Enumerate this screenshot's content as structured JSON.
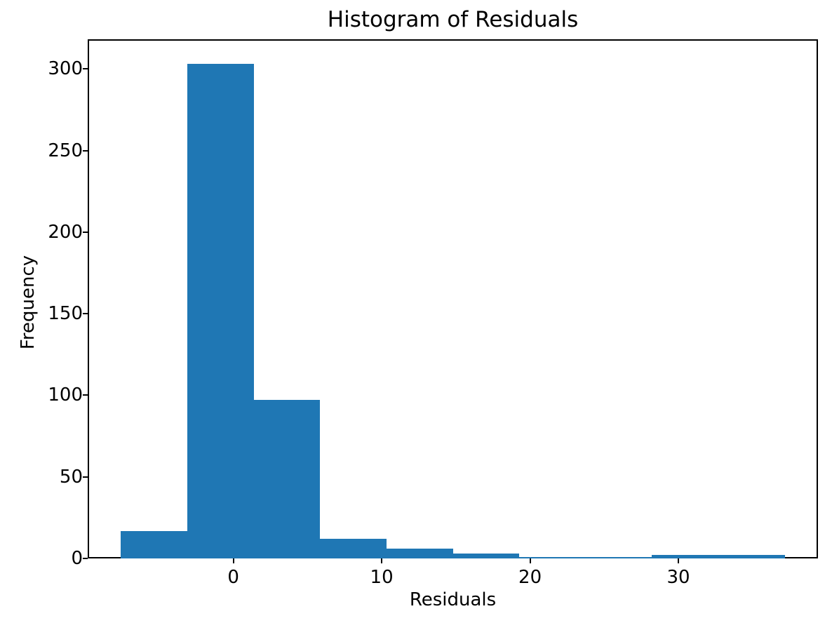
{
  "chart_data": {
    "type": "bar",
    "subtype": "histogram",
    "title": "Histogram of Residuals",
    "xlabel": "Residuals",
    "ylabel": "Frequency",
    "bar_color": "#1f77b4",
    "text_color": "#000000",
    "background_color": "#ffffff",
    "bin_edges": [
      -7.58,
      -3.11,
      1.37,
      5.85,
      10.32,
      14.8,
      19.27,
      23.75,
      28.22,
      32.7,
      37.17
    ],
    "counts": [
      17,
      303,
      97,
      12,
      6,
      3,
      1,
      1,
      2,
      2
    ],
    "xticks": [
      0,
      10,
      20,
      30
    ],
    "yticks": [
      0,
      50,
      100,
      150,
      200,
      250,
      300
    ],
    "xlim": [
      -9.82,
      39.41
    ],
    "ylim": [
      0,
      318.15
    ],
    "grid": false,
    "legend_position": "none"
  }
}
